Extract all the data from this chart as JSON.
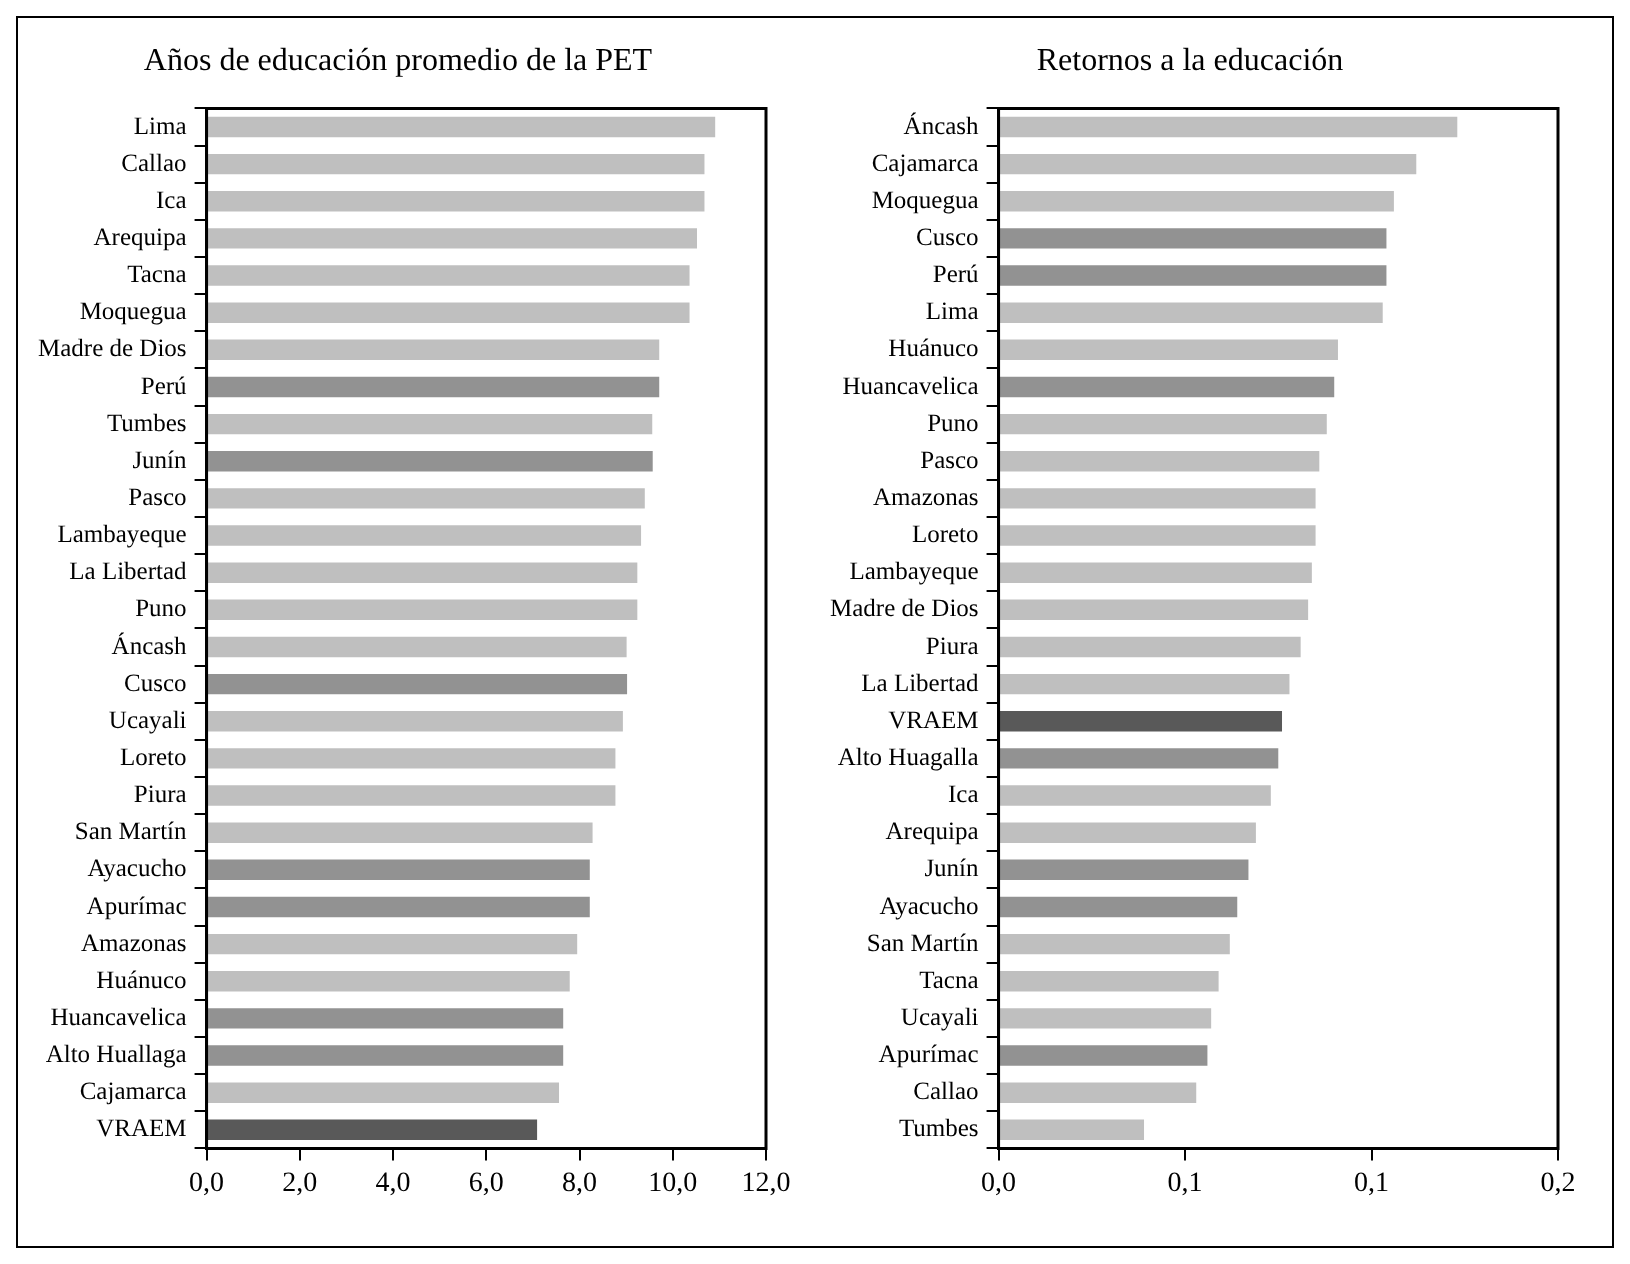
{
  "chart_data": [
    {
      "type": "bar",
      "orientation": "horizontal",
      "title": "Años de educación promedio de la PET",
      "categories": [
        "Lima",
        "Callao",
        "Ica",
        "Arequipa",
        "Tacna",
        "Moquegua",
        "Madre de Dios",
        "Perú",
        "Tumbes",
        "Junín",
        "Pasco",
        "Lambayeque",
        "La Libertad",
        "Puno",
        "Áncash",
        "Cusco",
        "Ucayali",
        "Loreto",
        "Piura",
        "San Martín",
        "Ayacucho",
        "Apurímac",
        "Amazonas",
        "Huánuco",
        "Huancavelica",
        "Alto Huallaga",
        "Cajamarca",
        "VRAEM"
      ],
      "values": [
        10.91,
        10.68,
        10.68,
        10.52,
        10.36,
        10.36,
        9.71,
        9.71,
        9.56,
        9.57,
        9.4,
        9.32,
        9.24,
        9.24,
        9.01,
        9.02,
        8.93,
        8.77,
        8.77,
        8.28,
        8.22,
        8.22,
        7.95,
        7.79,
        7.65,
        7.65,
        7.56,
        7.09
      ],
      "colors": [
        "#bfbfbf",
        "#bfbfbf",
        "#bfbfbf",
        "#bfbfbf",
        "#bfbfbf",
        "#bfbfbf",
        "#bfbfbf",
        "#929292",
        "#bfbfbf",
        "#929292",
        "#bfbfbf",
        "#bfbfbf",
        "#bfbfbf",
        "#bfbfbf",
        "#bfbfbf",
        "#929292",
        "#bfbfbf",
        "#bfbfbf",
        "#bfbfbf",
        "#bfbfbf",
        "#929292",
        "#929292",
        "#bfbfbf",
        "#bfbfbf",
        "#929292",
        "#929292",
        "#bfbfbf",
        "#595959"
      ],
      "xlim": [
        0,
        12
      ],
      "xticks": [
        {
          "value": 0,
          "label": "0,0"
        },
        {
          "value": 2,
          "label": "2,0"
        },
        {
          "value": 4,
          "label": "4,0"
        },
        {
          "value": 6,
          "label": "6,0"
        },
        {
          "value": 8,
          "label": "8,0"
        },
        {
          "value": 10,
          "label": "10,0"
        },
        {
          "value": 12,
          "label": "12,0"
        }
      ],
      "grid": false,
      "legend": false
    },
    {
      "type": "bar",
      "orientation": "horizontal",
      "title": "Retornos a la educación",
      "categories": [
        "Áncash",
        "Cajamarca",
        "Moquegua",
        "Cusco",
        "Perú",
        "Lima",
        "Huánuco",
        "Huancavelica",
        "Puno",
        "Pasco",
        "Amazonas",
        "Loreto",
        "Lambayeque",
        "Madre de Dios",
        "Piura",
        "La Libertad",
        "VRAEM",
        "Alto Huagalla",
        "Ica",
        "Arequipa",
        "Junín",
        "Ayacucho",
        "San Martín",
        "Tacna",
        "Ucayali",
        "Apurímac",
        "Callao",
        "Tumbes"
      ],
      "values": [
        0.123,
        0.112,
        0.106,
        0.104,
        0.104,
        0.103,
        0.091,
        0.09,
        0.088,
        0.086,
        0.085,
        0.085,
        0.084,
        0.083,
        0.081,
        0.078,
        0.076,
        0.075,
        0.073,
        0.069,
        0.067,
        0.064,
        0.062,
        0.059,
        0.057,
        0.056,
        0.053,
        0.039
      ],
      "colors": [
        "#bfbfbf",
        "#bfbfbf",
        "#bfbfbf",
        "#929292",
        "#929292",
        "#bfbfbf",
        "#bfbfbf",
        "#929292",
        "#bfbfbf",
        "#bfbfbf",
        "#bfbfbf",
        "#bfbfbf",
        "#bfbfbf",
        "#bfbfbf",
        "#bfbfbf",
        "#bfbfbf",
        "#595959",
        "#929292",
        "#bfbfbf",
        "#bfbfbf",
        "#929292",
        "#929292",
        "#bfbfbf",
        "#bfbfbf",
        "#bfbfbf",
        "#929292",
        "#bfbfbf",
        "#bfbfbf"
      ],
      "xlim": [
        0,
        0.15
      ],
      "xticks": [
        {
          "value": 0,
          "label": "0,0"
        },
        {
          "value": 0.05,
          "label": "0,1"
        },
        {
          "value": 0.1,
          "label": "0,1"
        },
        {
          "value": 0.15,
          "label": "0,2"
        }
      ],
      "grid": false,
      "legend": false
    }
  ]
}
